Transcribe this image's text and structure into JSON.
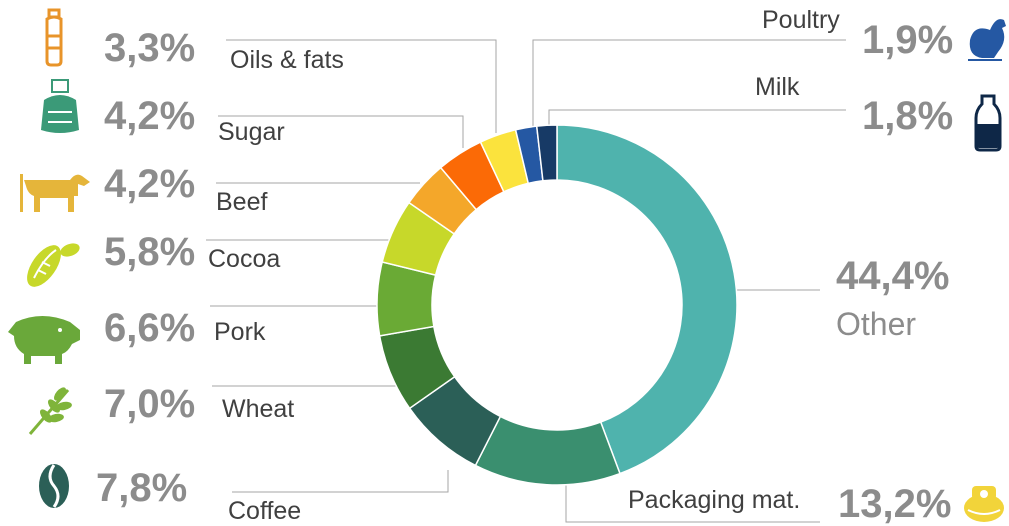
{
  "chart_data": {
    "type": "pie",
    "donut": true,
    "title": "",
    "slices": [
      {
        "label": "Other",
        "value": 44.4,
        "display": "44,4%",
        "color": "#4fb3ad",
        "icon": "none"
      },
      {
        "label": "Packaging mat.",
        "value": 13.2,
        "display": "13,2%",
        "color": "#3a8f6f",
        "icon": "packaging-icon"
      },
      {
        "label": "Coffee",
        "value": 7.8,
        "display": "7,8%",
        "color": "#2b5f57",
        "icon": "coffee-bean-icon"
      },
      {
        "label": "Wheat",
        "value": 7.0,
        "display": "7,0%",
        "color": "#3b7a33",
        "icon": "wheat-icon"
      },
      {
        "label": "Pork",
        "value": 6.6,
        "display": "6,6%",
        "color": "#6aaa35",
        "icon": "pig-icon"
      },
      {
        "label": "Cocoa",
        "value": 5.8,
        "display": "5,8%",
        "color": "#c7d82a",
        "icon": "cocoa-pod-icon"
      },
      {
        "label": "Beef",
        "value": 4.2,
        "display": "4,2%",
        "color": "#f4a72a",
        "icon": "cow-icon"
      },
      {
        "label": "Sugar",
        "value": 4.2,
        "display": "4,2%",
        "color": "#fb6a06",
        "icon": "sugar-sack-icon"
      },
      {
        "label": "Oils & fats",
        "value": 3.3,
        "display": "3,3%",
        "color": "#fbe33d",
        "icon": "oil-bottle-icon"
      },
      {
        "label": "Poultry",
        "value": 1.9,
        "display": "1,9%",
        "color": "#2558a3",
        "icon": "hen-icon"
      },
      {
        "label": "Milk",
        "value": 1.8,
        "display": "1,8%",
        "color": "#173a66",
        "icon": "milk-bottle-icon"
      }
    ],
    "legend": "none"
  }
}
